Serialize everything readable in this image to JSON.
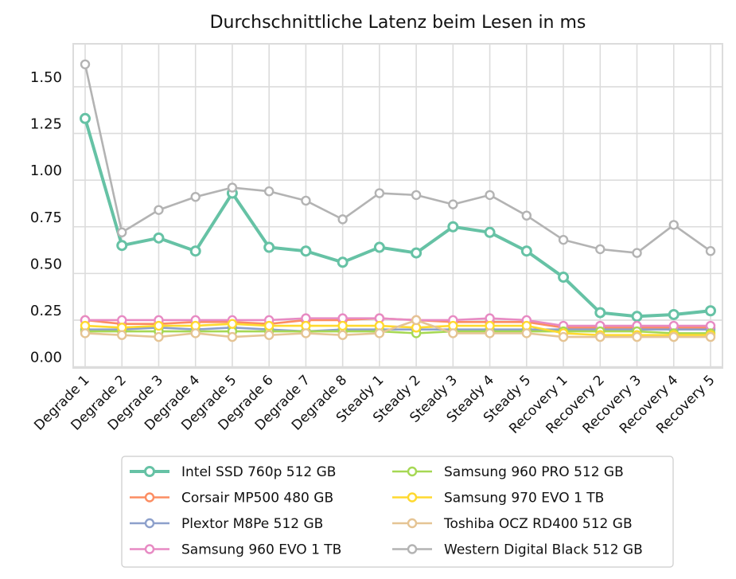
{
  "chart_data": {
    "type": "line",
    "title": "Durchschnittliche Latenz beim Lesen in ms",
    "xlabel": "",
    "ylabel": "",
    "ylim": [
      -0.006,
      1.73
    ],
    "grid": true,
    "legend_position": "bottom-center",
    "yticks": [
      0.0,
      0.25,
      0.5,
      0.75,
      1.0,
      1.25,
      1.5
    ],
    "ytick_labels": [
      "0.00",
      "0.25",
      "0.50",
      "0.75",
      "1.00",
      "1.25",
      "1.50"
    ],
    "categories": [
      "Degrade 1",
      "Degrade 2",
      "Degrade 3",
      "Degrade 4",
      "Degrade 5",
      "Degrade 6",
      "Degrade 7",
      "Degrade 8",
      "Steady 1",
      "Steady 2",
      "Steady 3",
      "Steady 4",
      "Steady 5",
      "Recovery 1",
      "Recovery 2",
      "Recovery 3",
      "Recovery 4",
      "Recovery 5"
    ],
    "series": [
      {
        "name": "Intel SSD 760p 512 GB",
        "color": "#66c2a5",
        "bold": true,
        "values": [
          1.33,
          0.65,
          0.69,
          0.62,
          0.93,
          0.64,
          0.62,
          0.56,
          0.64,
          0.61,
          0.75,
          0.72,
          0.62,
          0.48,
          0.29,
          0.27,
          0.28,
          0.3
        ]
      },
      {
        "name": "Corsair MP500 480 GB",
        "color": "#fc8d62",
        "values": [
          0.25,
          0.23,
          0.23,
          0.24,
          0.24,
          0.23,
          0.25,
          0.25,
          0.26,
          0.25,
          0.24,
          0.24,
          0.24,
          0.21,
          0.21,
          0.21,
          0.21,
          0.21
        ]
      },
      {
        "name": "Plextor M8Pe 512 GB",
        "color": "#8da0cb",
        "values": [
          0.2,
          0.2,
          0.21,
          0.2,
          0.21,
          0.2,
          0.19,
          0.2,
          0.2,
          0.2,
          0.2,
          0.2,
          0.2,
          0.2,
          0.2,
          0.2,
          0.2,
          0.2
        ]
      },
      {
        "name": "Samsung 960 EVO 1 TB",
        "color": "#e78ac3",
        "values": [
          0.25,
          0.25,
          0.25,
          0.25,
          0.25,
          0.25,
          0.26,
          0.26,
          0.26,
          0.25,
          0.25,
          0.26,
          0.25,
          0.22,
          0.22,
          0.22,
          0.22,
          0.22
        ]
      },
      {
        "name": "Samsung 960 PRO 512 GB",
        "color": "#a6d854",
        "values": [
          0.19,
          0.19,
          0.19,
          0.19,
          0.19,
          0.19,
          0.19,
          0.19,
          0.19,
          0.18,
          0.19,
          0.19,
          0.19,
          0.19,
          0.19,
          0.19,
          0.18,
          0.18
        ]
      },
      {
        "name": "Samsung 970 EVO 1 TB",
        "color": "#ffd92f",
        "values": [
          0.22,
          0.21,
          0.22,
          0.22,
          0.23,
          0.22,
          0.22,
          0.22,
          0.22,
          0.21,
          0.22,
          0.22,
          0.22,
          0.18,
          0.17,
          0.17,
          0.17,
          0.17
        ]
      },
      {
        "name": "Toshiba OCZ RD400 512 GB",
        "color": "#e5c494",
        "values": [
          0.18,
          0.17,
          0.16,
          0.18,
          0.16,
          0.17,
          0.18,
          0.17,
          0.18,
          0.25,
          0.18,
          0.18,
          0.18,
          0.16,
          0.16,
          0.16,
          0.16,
          0.16
        ]
      },
      {
        "name": "Western Digital Black 512 GB",
        "color": "#b3b3b3",
        "values": [
          1.62,
          0.72,
          0.84,
          0.91,
          0.96,
          0.94,
          0.89,
          0.79,
          0.93,
          0.92,
          0.87,
          0.92,
          0.81,
          0.68,
          0.63,
          0.61,
          0.76,
          0.62
        ]
      }
    ]
  }
}
